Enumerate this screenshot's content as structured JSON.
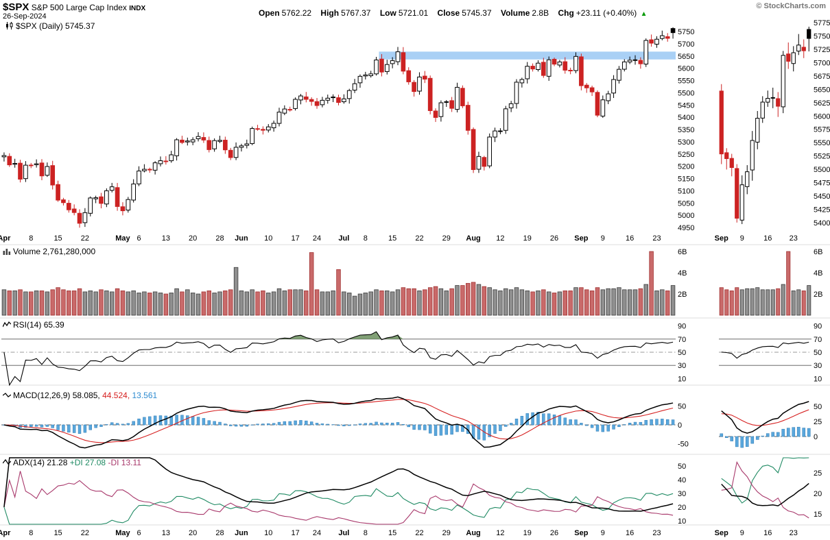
{
  "header": {
    "symbol": "$SPX",
    "name": "S&P 500 Large Cap Index",
    "exchange": "INDX",
    "date": "26-Sep-2024",
    "credit": "© StockCharts.com",
    "arrow": "▲",
    "quote": [
      {
        "label": "Open",
        "value": "5762.22"
      },
      {
        "label": "High",
        "value": "5767.37"
      },
      {
        "label": "Low",
        "value": "5721.01"
      },
      {
        "label": "Close",
        "value": "5745.37"
      },
      {
        "label": "Volume",
        "value": "2.8B"
      },
      {
        "label": "Chg",
        "value": "+23.11 (+0.40%)"
      }
    ]
  },
  "panels": {
    "price": {
      "label": "$SPX (Daily)",
      "value": "5745.37"
    },
    "volume": {
      "label": "Volume",
      "value": "2,761,280,000"
    },
    "rsi": {
      "label": "RSI(14)",
      "value": "65.39"
    },
    "macd": {
      "label": "MACD(12,26,9)",
      "values": [
        "58.085,",
        "44.524,",
        "13.561"
      ]
    },
    "adx": {
      "label": "ADX(14)",
      "value": "21.28",
      "pdi": "+DI 27.08",
      "mdi": "-DI 13.11"
    }
  },
  "colors": {
    "up_candle": "#000000",
    "down_candle": "#cc2222",
    "vol_up": "#8f8f8f",
    "vol_down": "#c96a6a",
    "macd_line": "#000000",
    "signal_line": "#d62020",
    "hist": "#5aa7dc",
    "rsi_fill": "#6b8f5e",
    "pdi": "#1f8a63",
    "mdi": "#a8386b",
    "band": "#a9d0f5",
    "chg_arrow": "#009900"
  },
  "chart_data": {
    "type": "candlestick",
    "symbol": "$SPX",
    "timeframe": "Daily",
    "mini_start": "9/3",
    "band": {
      "start": "7/11",
      "high": 5668,
      "low": 5636
    },
    "last_ohlc": {
      "open": 5762.22,
      "high": 5767.37,
      "low": 5721.01,
      "close": 5745.37
    },
    "indicator_values": {
      "rsi": 65.39,
      "macd": 58.085,
      "macd_signal": 44.524,
      "macd_hist": 13.561,
      "adx": 21.28,
      "plus_di": 27.08,
      "minus_di": 13.11,
      "volume": 2761280000
    },
    "axes": {
      "price": {
        "min": 4950,
        "max": 5750,
        "step": 50
      },
      "mini_price": {
        "min": 5400,
        "max": 5775,
        "step": 25
      },
      "volume_ticks": [
        {
          "v": 2,
          "l": "2B"
        },
        {
          "v": 4,
          "l": "4B"
        },
        {
          "v": 6,
          "l": "6B"
        }
      ],
      "rsi_ticks": [
        90,
        70,
        50,
        30,
        10
      ],
      "rsi_lines": {
        "overbought": 70,
        "mid": 50,
        "oversold": 30
      },
      "macd_ticks": [
        50,
        0,
        -50
      ],
      "macd_ticks_mini": [
        50,
        25,
        0
      ],
      "adx_ticks": [
        50,
        40,
        30,
        20,
        10
      ],
      "adx_ticks_mini": [
        25,
        20,
        15
      ]
    },
    "xticks": [
      {
        "d": "4/1",
        "l": "Apr",
        "b": true
      },
      {
        "d": "4/8",
        "l": "8"
      },
      {
        "d": "4/15",
        "l": "15"
      },
      {
        "d": "4/22",
        "l": "22"
      },
      {
        "d": "5/1",
        "l": "May",
        "b": true
      },
      {
        "d": "5/6",
        "l": "6"
      },
      {
        "d": "5/13",
        "l": "13"
      },
      {
        "d": "5/20",
        "l": "20"
      },
      {
        "d": "5/28",
        "l": "28"
      },
      {
        "d": "6/3",
        "l": "Jun",
        "b": true
      },
      {
        "d": "6/10",
        "l": "10"
      },
      {
        "d": "6/17",
        "l": "17"
      },
      {
        "d": "6/24",
        "l": "24"
      },
      {
        "d": "7/1",
        "l": "Jul",
        "b": true
      },
      {
        "d": "7/8",
        "l": "8"
      },
      {
        "d": "7/15",
        "l": "15"
      },
      {
        "d": "7/22",
        "l": "22"
      },
      {
        "d": "7/29",
        "l": "29"
      },
      {
        "d": "8/5",
        "l": "Aug",
        "b": true
      },
      {
        "d": "8/12",
        "l": "12"
      },
      {
        "d": "8/19",
        "l": "19"
      },
      {
        "d": "8/26",
        "l": "26"
      },
      {
        "d": "9/3",
        "l": "Sep",
        "b": true
      },
      {
        "d": "9/9",
        "l": "9"
      },
      {
        "d": "9/16",
        "l": "16"
      },
      {
        "d": "9/23",
        "l": "23"
      }
    ],
    "mini_xticks": [
      {
        "d": "9/3",
        "l": "Sep",
        "b": true
      },
      {
        "d": "9/9",
        "l": "9"
      },
      {
        "d": "9/16",
        "l": "16"
      },
      {
        "d": "9/23",
        "l": "23"
      }
    ],
    "dates": [
      "4/1",
      "4/2",
      "4/3",
      "4/4",
      "4/5",
      "4/8",
      "4/9",
      "4/10",
      "4/11",
      "4/12",
      "4/15",
      "4/16",
      "4/17",
      "4/18",
      "4/19",
      "4/22",
      "4/23",
      "4/24",
      "4/25",
      "4/26",
      "4/29",
      "4/30",
      "5/1",
      "5/2",
      "5/3",
      "5/6",
      "5/7",
      "5/8",
      "5/9",
      "5/10",
      "5/13",
      "5/14",
      "5/15",
      "5/16",
      "5/17",
      "5/20",
      "5/21",
      "5/22",
      "5/23",
      "5/24",
      "5/28",
      "5/29",
      "5/30",
      "5/31",
      "6/3",
      "6/4",
      "6/5",
      "6/6",
      "6/7",
      "6/10",
      "6/11",
      "6/12",
      "6/13",
      "6/14",
      "6/17",
      "6/18",
      "6/20",
      "6/21",
      "6/24",
      "6/25",
      "6/26",
      "6/27",
      "6/28",
      "7/1",
      "7/2",
      "7/3",
      "7/5",
      "7/8",
      "7/9",
      "7/10",
      "7/11",
      "7/12",
      "7/15",
      "7/16",
      "7/17",
      "7/18",
      "7/19",
      "7/22",
      "7/23",
      "7/24",
      "7/25",
      "7/26",
      "7/29",
      "7/30",
      "7/31",
      "8/1",
      "8/2",
      "8/5",
      "8/6",
      "8/7",
      "8/8",
      "8/9",
      "8/12",
      "8/13",
      "8/14",
      "8/15",
      "8/16",
      "8/19",
      "8/20",
      "8/21",
      "8/22",
      "8/23",
      "8/26",
      "8/27",
      "8/28",
      "8/29",
      "8/30",
      "9/3",
      "9/4",
      "9/5",
      "9/6",
      "9/9",
      "9/10",
      "9/11",
      "9/12",
      "9/13",
      "9/16",
      "9/17",
      "9/18",
      "9/19",
      "9/20",
      "9/23",
      "9/24",
      "9/25",
      "9/26"
    ],
    "close": [
      5243.77,
      5205.81,
      5211.49,
      5147.21,
      5204.34,
      5202.39,
      5209.91,
      5160.64,
      5199.06,
      5123.41,
      5061.82,
      5051.41,
      5022.21,
      5011.12,
      4967.23,
      5010.6,
      5070.55,
      5071.63,
      5048.42,
      5099.96,
      5116.17,
      5035.69,
      5018.39,
      5064.2,
      5127.79,
      5180.74,
      5187.7,
      5187.67,
      5214.08,
      5222.68,
      5221.42,
      5246.68,
      5308.15,
      5297.1,
      5303.27,
      5308.13,
      5321.41,
      5307.01,
      5267.84,
      5304.72,
      5306.04,
      5266.95,
      5235.48,
      5277.51,
      5283.4,
      5291.34,
      5354.03,
      5352.96,
      5346.99,
      5360.79,
      5375.32,
      5421.03,
      5433.74,
      5431.6,
      5473.23,
      5487.03,
      5473.17,
      5464.62,
      5447.87,
      5469.3,
      5477.9,
      5482.87,
      5460.48,
      5475.09,
      5509.01,
      5537.02,
      5567.19,
      5572.85,
      5576.98,
      5633.91,
      5584.54,
      5615.35,
      5631.22,
      5667.2,
      5588.27,
      5544.59,
      5505.0,
      5564.41,
      5555.74,
      5427.13,
      5399.22,
      5459.1,
      5463.54,
      5436.44,
      5522.3,
      5446.68,
      5346.56,
      5186.33,
      5240.03,
      5199.5,
      5319.31,
      5344.16,
      5344.39,
      5434.43,
      5455.21,
      5543.22,
      5554.25,
      5608.25,
      5597.12,
      5620.85,
      5570.64,
      5634.61,
      5616.84,
      5625.8,
      5592.18,
      5591.96,
      5648.4,
      5528.93,
      5520.07,
      5503.41,
      5408.42,
      5471.05,
      5495.52,
      5554.13,
      5595.76,
      5626.02,
      5633.09,
      5634.58,
      5618.26,
      5713.64,
      5702.55,
      5718.57,
      5732.93,
      5722.26,
      5745.37
    ],
    "volume": [
      2.4,
      2.3,
      2.3,
      2.4,
      2.2,
      2.2,
      2.3,
      2.3,
      2.2,
      2.4,
      2.6,
      2.4,
      2.3,
      2.3,
      2.5,
      2.2,
      2.3,
      2.2,
      2.4,
      2.3,
      2.2,
      2.5,
      2.3,
      2.2,
      2.3,
      2.1,
      2.2,
      2.1,
      2.2,
      2.1,
      2.0,
      2.1,
      2.5,
      2.2,
      2.4,
      2.1,
      2.0,
      2.2,
      2.3,
      2.1,
      2.2,
      2.3,
      2.4,
      4.5,
      2.3,
      2.2,
      2.4,
      2.2,
      2.3,
      2.1,
      2.2,
      2.5,
      2.3,
      2.4,
      2.4,
      2.4,
      2.3,
      5.9,
      2.4,
      2.2,
      2.2,
      2.3,
      4.3,
      2.2,
      2.1,
      1.8,
      2.0,
      2.1,
      2.2,
      2.4,
      2.3,
      2.3,
      2.2,
      2.4,
      2.6,
      2.5,
      2.5,
      2.3,
      2.4,
      2.6,
      2.7,
      2.5,
      2.3,
      2.5,
      2.8,
      2.8,
      3.0,
      3.1,
      2.9,
      2.7,
      2.6,
      2.4,
      2.3,
      2.5,
      2.4,
      2.6,
      2.4,
      2.3,
      2.2,
      2.3,
      2.4,
      2.2,
      2.1,
      2.2,
      2.3,
      2.3,
      2.6,
      2.6,
      2.4,
      2.3,
      2.6,
      2.4,
      2.5,
      2.5,
      2.6,
      2.4,
      2.4,
      2.4,
      2.5,
      2.9,
      6.0,
      2.3,
      2.4,
      2.3,
      2.8
    ]
  }
}
